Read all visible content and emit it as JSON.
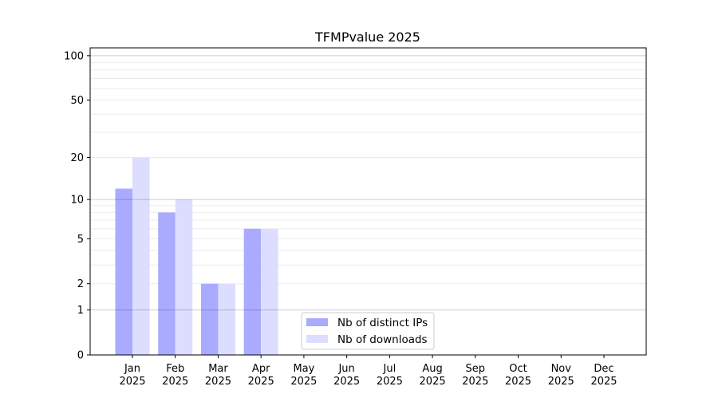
{
  "chart_data": {
    "type": "bar",
    "title": "TFMPvalue 2025",
    "xlabel": "",
    "ylabel": "",
    "yscale": "log(1+y)",
    "ylim": [
      0,
      113
    ],
    "yticks": [
      0,
      1,
      2,
      5,
      10,
      20,
      50,
      100
    ],
    "grid": true,
    "legend_placement": "lower-center",
    "categories": [
      "Jan\n2025",
      "Feb\n2025",
      "Mar\n2025",
      "Apr\n2025",
      "May\n2025",
      "Jun\n2025",
      "Jul\n2025",
      "Aug\n2025",
      "Sep\n2025",
      "Oct\n2025",
      "Nov\n2025",
      "Dec\n2025"
    ],
    "series": [
      {
        "name": "Nb of distinct IPs",
        "color": "#aaaaff",
        "values": [
          12,
          8,
          2,
          6,
          0,
          0,
          0,
          0,
          0,
          0,
          0,
          0
        ]
      },
      {
        "name": "Nb of downloads",
        "color": "#ddddff",
        "values": [
          20,
          10,
          2,
          6,
          0,
          0,
          0,
          0,
          0,
          0,
          0,
          0
        ]
      }
    ]
  }
}
